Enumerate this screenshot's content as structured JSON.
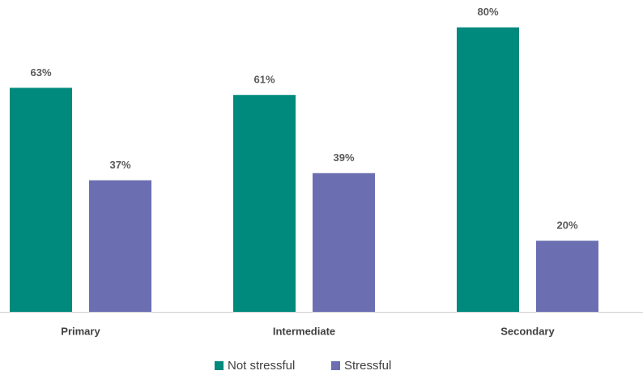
{
  "chart_data": {
    "type": "bar",
    "categories": [
      "Primary",
      "Intermediate",
      "Secondary"
    ],
    "series": [
      {
        "name": "Not stressful",
        "color": "#00897d",
        "values": [
          63,
          61,
          80
        ],
        "value_labels": [
          "63%",
          "61%",
          "80%"
        ]
      },
      {
        "name": "Stressful",
        "color": "#6b6fb1",
        "values": [
          37,
          39,
          20
        ],
        "value_labels": [
          "37%",
          "39%",
          "20%"
        ]
      }
    ]
  }
}
